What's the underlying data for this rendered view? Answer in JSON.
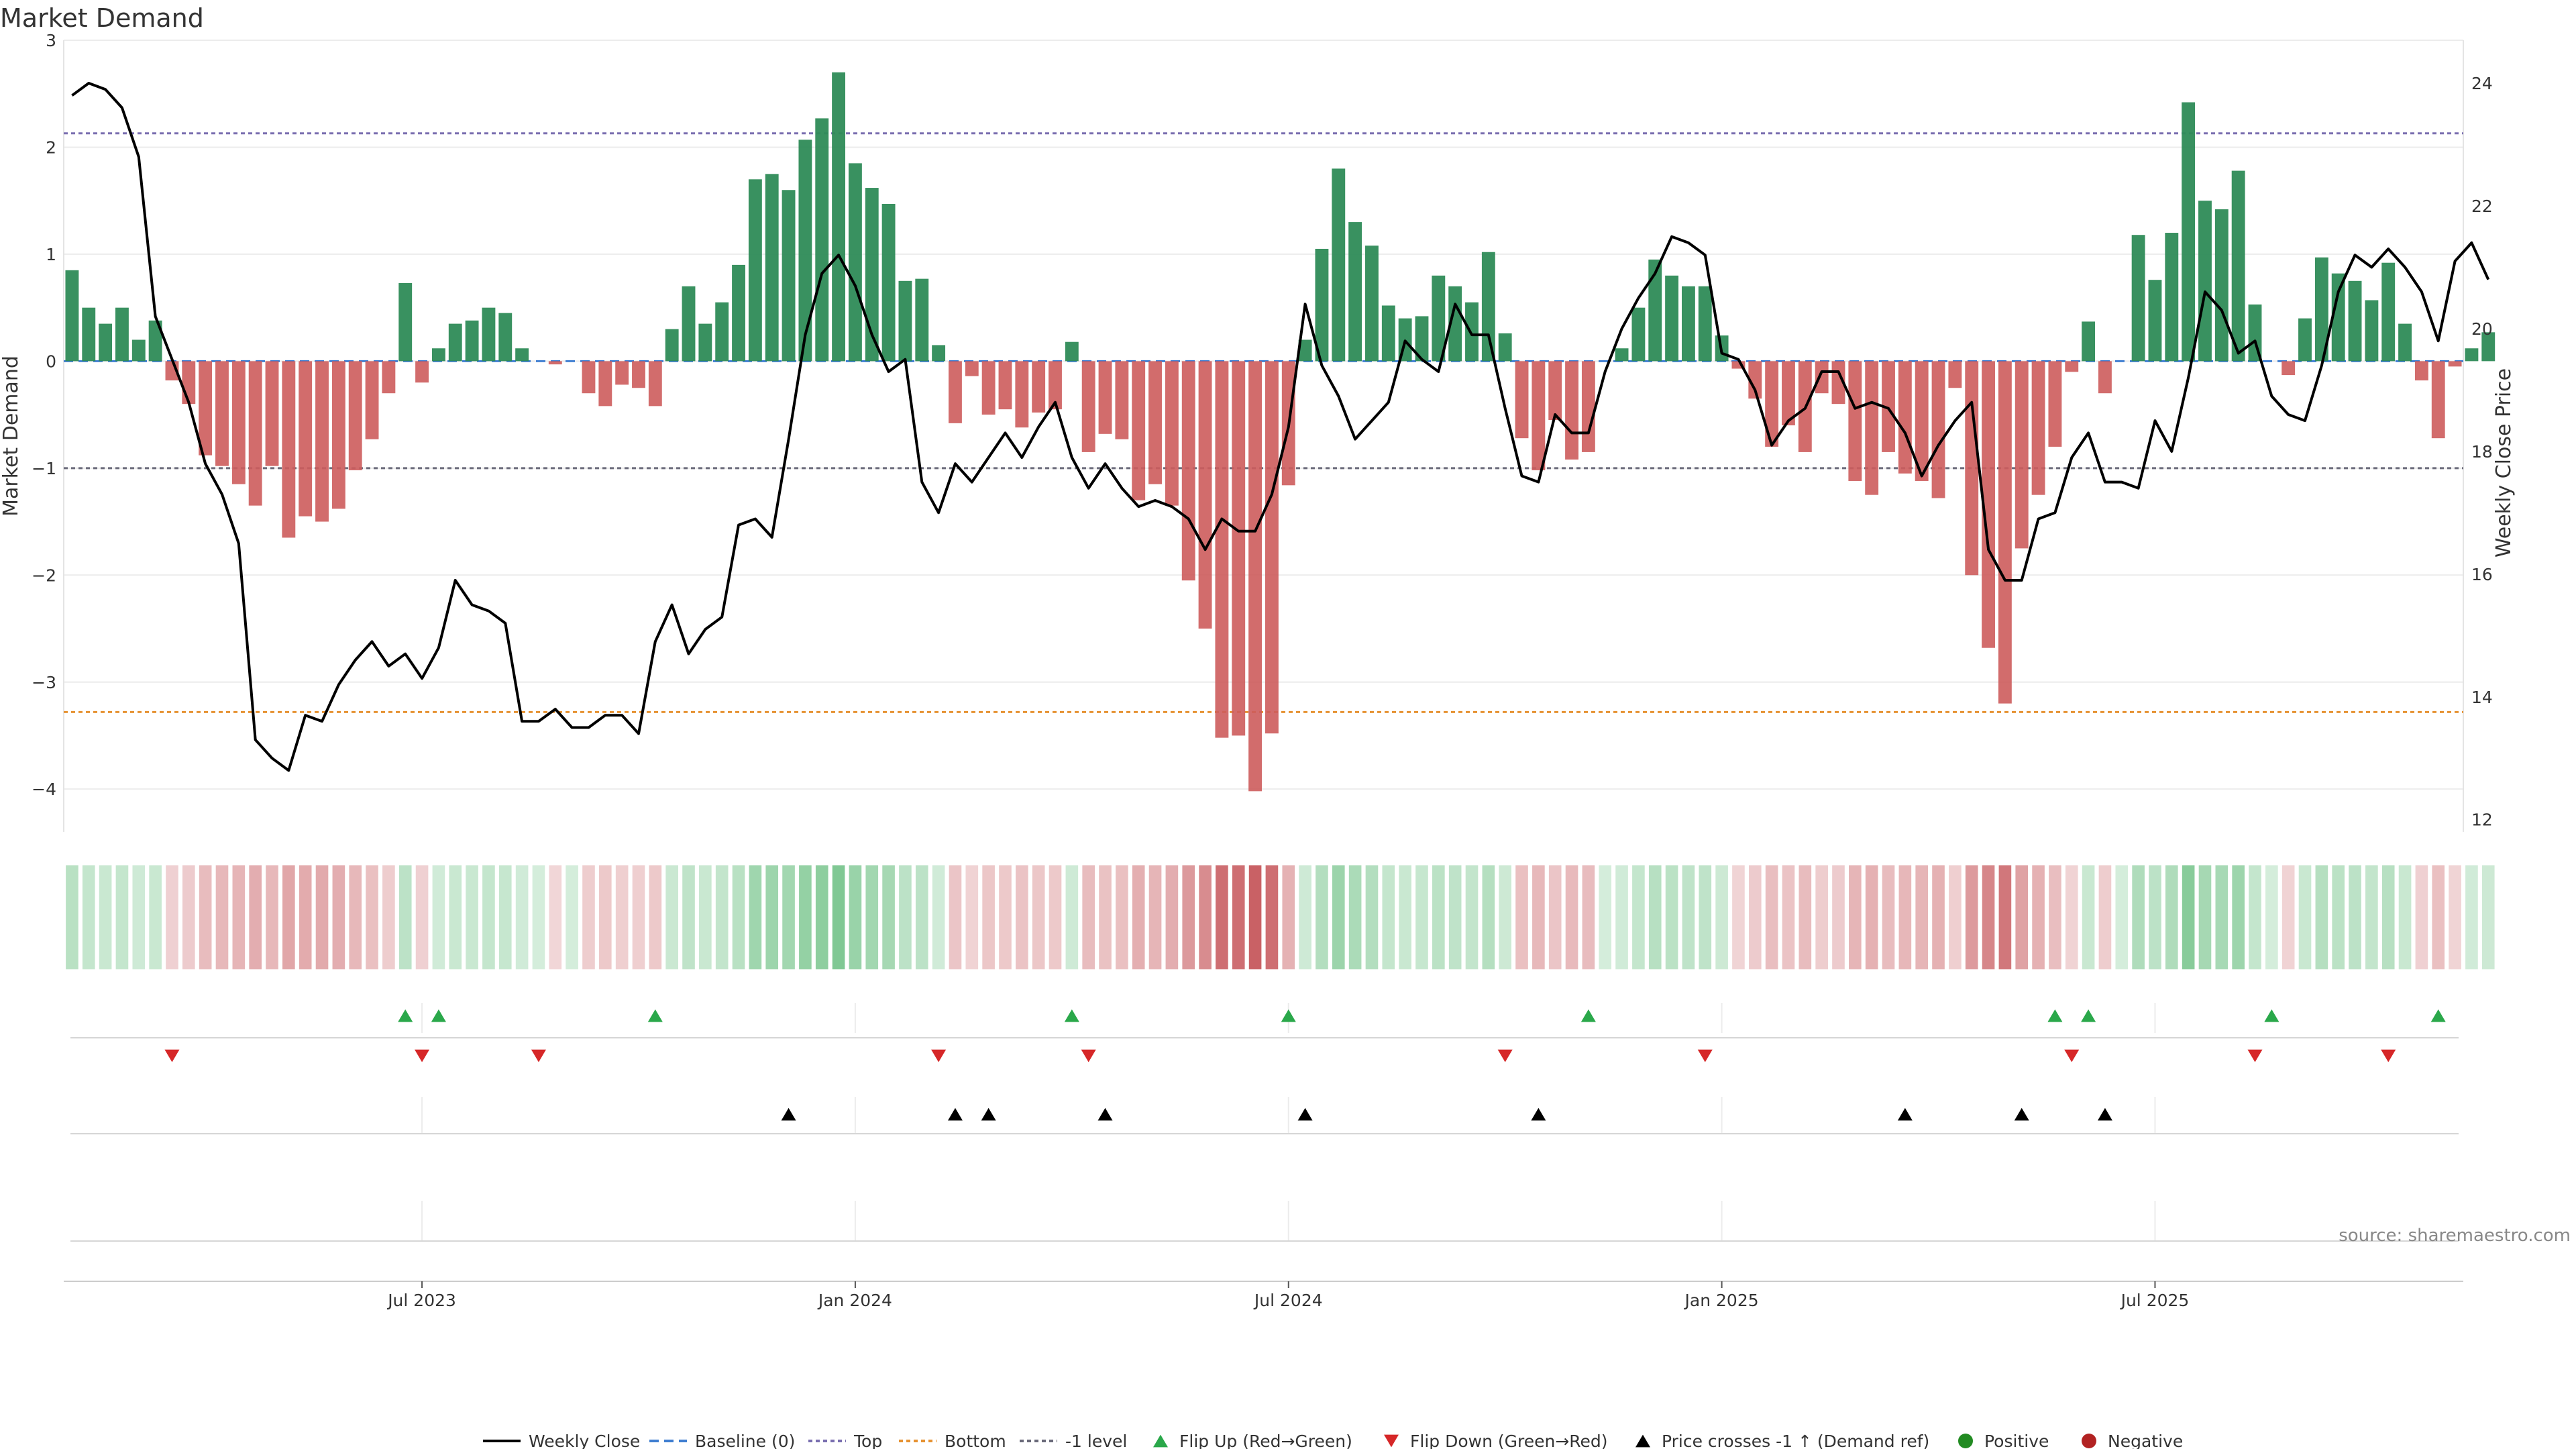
{
  "chart_data": {
    "type": "bar",
    "title": "Market Demand",
    "ylabel": "Market Demand",
    "y2label": "Weekly Close Price",
    "ylim": [
      -4.4,
      3.0
    ],
    "y2lim": [
      11.8,
      24.7
    ],
    "yticks": [
      3,
      2,
      1,
      0,
      -1,
      -2,
      -3,
      -4
    ],
    "ytick_labels": [
      "3",
      "2",
      "1",
      "0",
      "−1",
      "−2",
      "−3",
      "−4"
    ],
    "y2ticks": [
      24,
      22,
      20,
      18,
      16,
      14,
      12
    ],
    "y2tick_labels": [
      "24",
      "22",
      "20",
      "18",
      "16",
      "14",
      "12"
    ],
    "reference_lines": {
      "baseline": 0,
      "top": 2.13,
      "bottom": -3.28,
      "minus_one": -1
    },
    "x_tick_labels": [
      {
        "week": 21,
        "label": "Jul 2023"
      },
      {
        "week": 47,
        "label": "Jan 2024"
      },
      {
        "week": 73,
        "label": "Jul 2024"
      },
      {
        "week": 99,
        "label": "Jan 2025"
      },
      {
        "week": 125,
        "label": "Jul 2025"
      }
    ],
    "weeks": 144,
    "series": [
      {
        "name": "Market Demand",
        "values": [
          0.85,
          0.5,
          0.35,
          0.5,
          0.2,
          0.38,
          -0.18,
          -0.4,
          -0.88,
          -0.98,
          -1.15,
          -1.35,
          -0.98,
          -1.65,
          -1.45,
          -1.5,
          -1.38,
          -1.02,
          -0.73,
          -0.3,
          0.73,
          -0.2,
          0.12,
          0.35,
          0.38,
          0.5,
          0.45,
          0.12,
          0,
          -0.03,
          0,
          -0.3,
          -0.42,
          -0.22,
          -0.25,
          -0.42,
          0.3,
          0.7,
          0.35,
          0.55,
          0.9,
          1.7,
          1.75,
          1.6,
          2.07,
          2.27,
          2.7,
          1.85,
          1.62,
          1.47,
          0.75,
          0.77,
          0.15,
          -0.58,
          -0.14,
          -0.5,
          -0.45,
          -0.62,
          -0.48,
          -0.45,
          0.18,
          -0.85,
          -0.68,
          -0.73,
          -1.3,
          -1.15,
          -1.35,
          -2.05,
          -2.5,
          -3.52,
          -3.5,
          -4.02,
          -3.48,
          -1.16,
          0.2,
          1.05,
          1.8,
          1.3,
          1.08,
          0.52,
          0.4,
          0.42,
          0.8,
          0.7,
          0.55,
          1.02,
          0.26,
          -0.72,
          -1.02,
          -0.55,
          -0.92,
          -0.85,
          0,
          0.12,
          0.5,
          0.95,
          0.8,
          0.7,
          0.7,
          0.24,
          -0.07,
          -0.35,
          -0.8,
          -0.6,
          -0.85,
          -0.3,
          -0.4,
          -1.12,
          -1.25,
          -0.85,
          -1.05,
          -1.12,
          -1.28,
          -0.25,
          -2,
          -2.68,
          -3.2,
          -1.75,
          -1.25,
          -0.8,
          -0.1,
          0.37,
          -0.3,
          0,
          1.18,
          0.76,
          1.2,
          2.42,
          1.5,
          1.42,
          1.78,
          0.53,
          0,
          -0.13,
          0.4,
          0.97,
          0.82,
          0.75,
          0.57,
          0.92,
          0.35,
          -0.18,
          -0.72,
          -0.05,
          0.12,
          0.27
        ]
      },
      {
        "name": "Weekly Close",
        "values": [
          23.8,
          24.0,
          23.9,
          23.6,
          22.8,
          20.2,
          19.5,
          18.8,
          17.8,
          17.3,
          16.5,
          13.3,
          13.0,
          12.8,
          13.7,
          13.6,
          14.2,
          14.6,
          14.9,
          14.5,
          14.7,
          14.3,
          14.8,
          15.9,
          15.5,
          15.4,
          15.2,
          13.6,
          13.6,
          13.8,
          13.5,
          13.5,
          13.7,
          13.7,
          13.4,
          14.9,
          15.5,
          14.7,
          15.1,
          15.3,
          16.8,
          16.9,
          16.6,
          18.2,
          19.9,
          20.9,
          21.2,
          20.7,
          19.9,
          19.3,
          19.5,
          17.5,
          17.0,
          17.8,
          17.5,
          17.9,
          18.3,
          17.9,
          18.4,
          18.8,
          17.9,
          17.4,
          17.8,
          17.4,
          17.1,
          17.2,
          17.1,
          16.9,
          16.4,
          16.9,
          16.7,
          16.7,
          17.3,
          18.4,
          20.4,
          19.4,
          18.9,
          18.2,
          18.5,
          18.8,
          19.8,
          19.5,
          19.3,
          20.4,
          19.9,
          19.9,
          18.7,
          17.6,
          17.5,
          18.6,
          18.3,
          18.3,
          19.3,
          20.0,
          20.5,
          20.9,
          21.5,
          21.4,
          21.2,
          19.6,
          19.5,
          19.0,
          18.1,
          18.5,
          18.7,
          19.3,
          19.3,
          18.7,
          18.8,
          18.7,
          18.3,
          17.6,
          18.1,
          18.5,
          18.8,
          16.4,
          15.9,
          15.9,
          16.9,
          17.0,
          17.9,
          18.3,
          17.5,
          17.5,
          17.4,
          18.5,
          18.0,
          19.2,
          20.6,
          20.3,
          19.6,
          19.8,
          18.9,
          18.6,
          18.5,
          19.4,
          20.6,
          21.2,
          21.0,
          21.3,
          21.0,
          20.6,
          19.8,
          21.1,
          21.4,
          20.8
        ]
      }
    ],
    "flip_up_weeks": [
      20,
      22,
      35,
      60,
      73,
      91,
      119,
      121,
      132,
      142
    ],
    "flip_down_weeks": [
      6,
      21,
      28,
      52,
      61,
      86,
      98,
      120,
      131,
      139
    ],
    "price_cross_weeks": [
      43,
      53,
      55,
      62,
      74,
      88,
      110,
      117,
      122
    ],
    "legend": [
      "Weekly Close",
      "Baseline (0)",
      "Top",
      "Bottom",
      "-1 level",
      "Flip Up (Red→Green)",
      "Flip Down (Green→Red)",
      "Price crosses -1 ↑ (Demand ref)",
      "Positive",
      "Negative"
    ],
    "source": "source: sharemaestro.com",
    "colors": {
      "positive": "#2e8b57",
      "negative": "#cd5c5c",
      "line": "#000000",
      "top": "#7a6fb0",
      "bottom": "#e69232",
      "baseline": "#3f7ed1",
      "minus_one": "#6a6a7a",
      "flip_up": "#2aa84a",
      "flip_down": "#d62728",
      "cross": "#000000",
      "positive_dot": "#228b22",
      "negative_dot": "#b22222"
    }
  }
}
